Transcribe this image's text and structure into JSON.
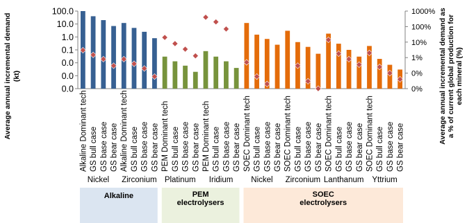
{
  "chart_data": {
    "type": "bar",
    "categories": [
      "Alkaline Dominant tech",
      "GS bull case",
      "GS base case",
      "GS bear case",
      "Alkaline Dominant tech",
      "GS bull case",
      "GS base case",
      "GS bear case",
      "PEM Dominant tech",
      "GS bull case",
      "GS base case",
      "GS bear case",
      "PEM Dominant tech",
      "GS bull case",
      "GS base case",
      "GS bear case",
      "SOEC Dominant tech",
      "GS bull case",
      "GS base case",
      "GS bear case",
      "SOEC Dominant tech",
      "GS bull case",
      "GS base case",
      "GS bear case",
      "SOEC Dominant tech",
      "GS bull case",
      "GS base case",
      "GS bear case",
      "SOEC Dominant tech",
      "GS bull case",
      "GS base case",
      "GS bear case"
    ],
    "series": [
      {
        "axis": "left",
        "values": [
          100,
          40,
          20,
          7,
          12,
          5,
          2.5,
          0.8,
          0.03,
          0.013,
          0.006,
          0.002,
          0.08,
          0.03,
          0.013,
          0.004,
          12,
          1.5,
          0.7,
          0.25,
          3,
          0.4,
          0.17,
          0.05,
          1.8,
          0.3,
          0.1,
          0.03,
          0.2,
          0.02,
          0.007,
          0.003
        ]
      },
      {
        "axis": "right",
        "values": [
          3,
          1.5,
          0.8,
          0.3,
          0.8,
          0.4,
          0.2,
          0.06,
          20,
          8,
          3.5,
          1.3,
          400,
          200,
          70,
          null,
          0.5,
          0.06,
          0.02,
          null,
          null,
          0.3,
          0.03,
          0.01,
          14,
          1.8,
          0.8,
          0.35,
          2,
          0.25,
          0.1,
          0.04
        ]
      }
    ],
    "minerals": [
      "Nickel",
      "Zirconium",
      "Platinum",
      "Iridium",
      "Nickel",
      "Zirconium",
      "Lanthanum",
      "Yttrium"
    ],
    "groups": [
      {
        "label": "Alkaline",
        "bands": 2,
        "fill": "#dbe5f1"
      },
      {
        "label": "PEM\nelectrolysers",
        "bands": 2,
        "fill": "#ebf1de"
      },
      {
        "label": "SOEC\nelectrolysers",
        "bands": 4,
        "fill": "#fde9d9"
      }
    ],
    "band_colors": [
      "#376092",
      "#376092",
      "#77933c",
      "#77933c",
      "#e46c0a",
      "#e46c0a",
      "#e46c0a",
      "#e46c0a"
    ],
    "marker_color": "#c0504d",
    "ylabel": "Average annual incremental demand\n(kt)",
    "y2label": "Average annual incremental demand as\na % of current global production for\neach mineral (%)",
    "y_ticks": [
      "100.0",
      "10.0",
      "1.0",
      "0.1",
      "0.0",
      "0.0",
      "0.0"
    ],
    "y_tick_values": [
      100,
      10,
      1,
      0.1,
      0.01,
      0.001,
      0.0001
    ],
    "y2_ticks": [
      "1000%",
      "100%",
      "10%",
      "1%",
      "0%",
      "0%"
    ],
    "y2_tick_values": [
      1000,
      100,
      10,
      1,
      0.1,
      0.01
    ],
    "ylim": [
      0.0001,
      100
    ],
    "y2lim": [
      0.01,
      1000
    ],
    "log_scale": true,
    "grid": false
  }
}
